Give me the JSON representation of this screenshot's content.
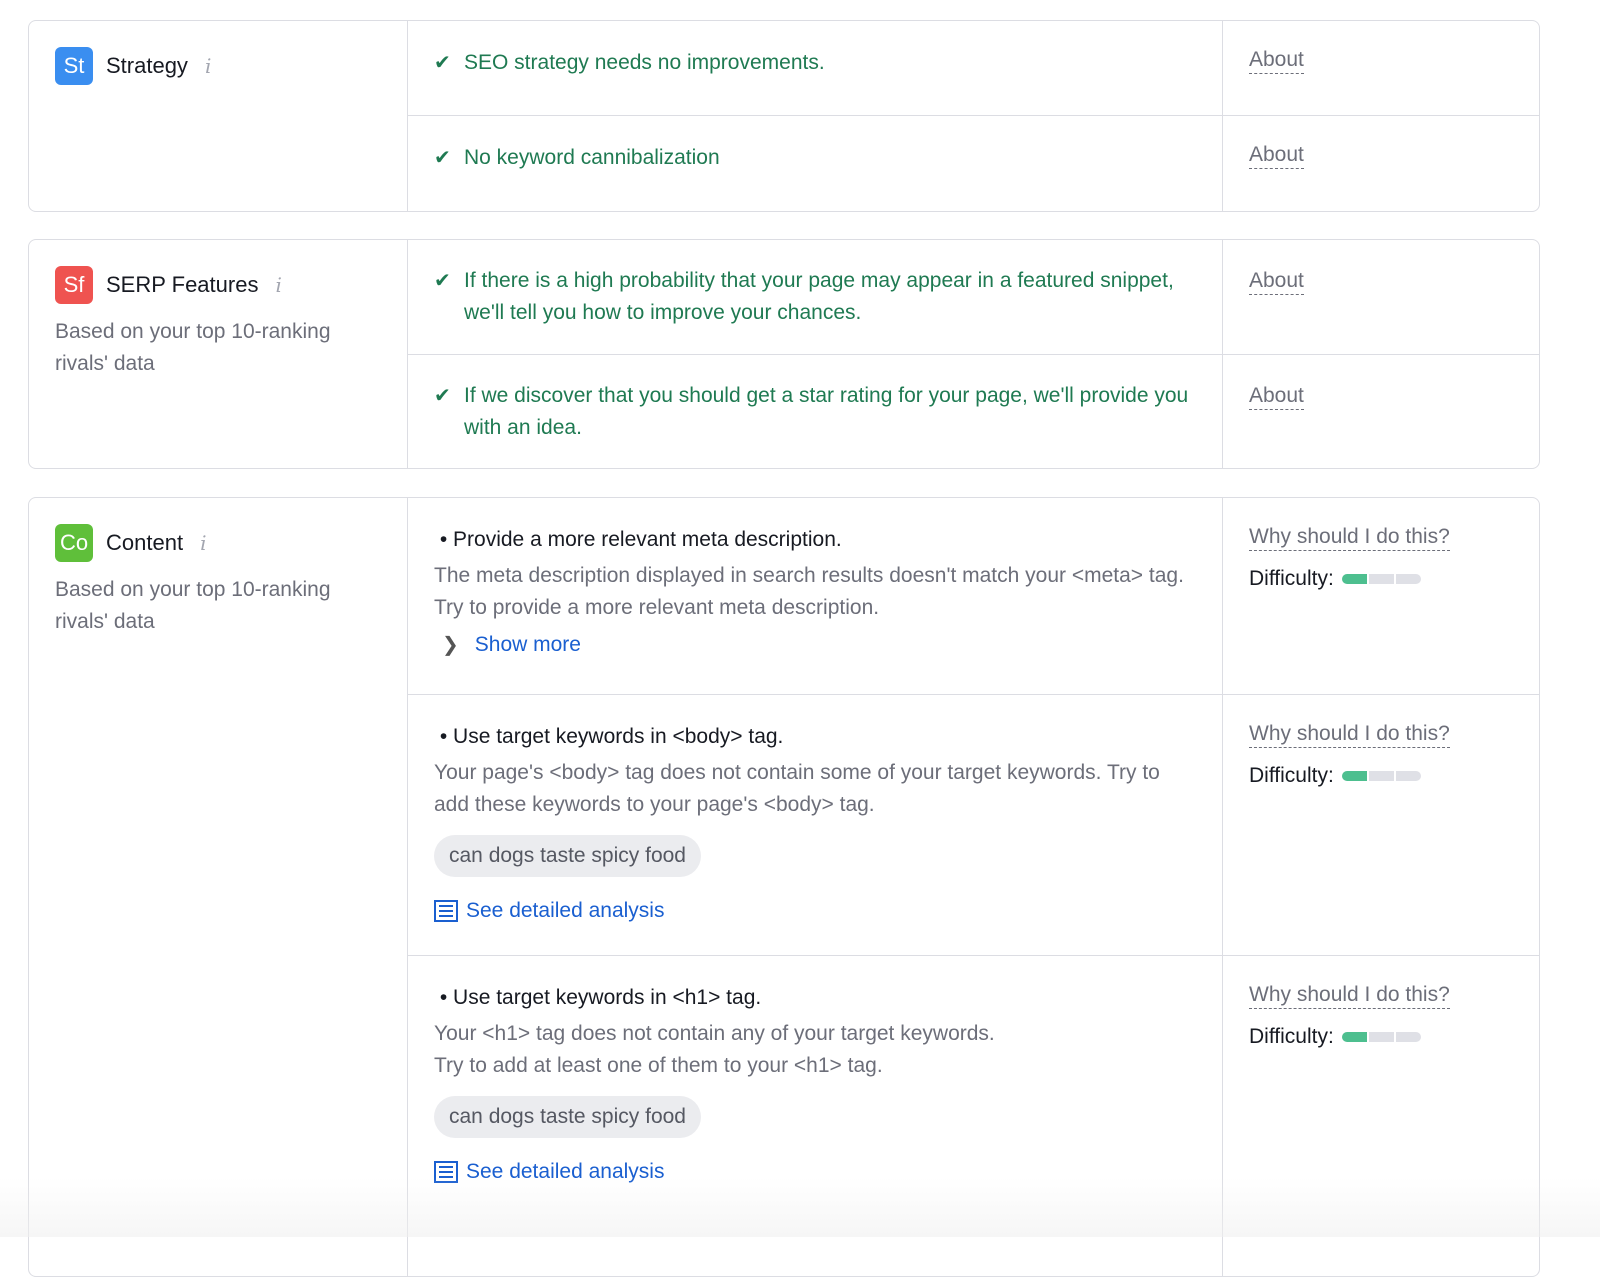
{
  "sections": [
    {
      "badge": "St",
      "badge_color": "#3a8ef0",
      "title": "Strategy",
      "items": [
        {
          "text": "SEO strategy needs no improvements.",
          "link": "About"
        },
        {
          "text": "No keyword cannibalization",
          "link": "About"
        }
      ]
    },
    {
      "badge": "Sf",
      "badge_color": "#ef5350",
      "title": "SERP Features",
      "subtitle": "Based on your top 10-ranking rivals' data",
      "items": [
        {
          "text": "If there is a high probability that your page may appear in a featured snippet, we'll tell you how to improve your chances.",
          "link": "About"
        },
        {
          "text": "If we discover that you should get a star rating for your page, we'll provide you with an idea.",
          "link": "About"
        }
      ]
    },
    {
      "badge": "Co",
      "badge_color": "#5fbf3a",
      "title": "Content",
      "subtitle": "Based on your top 10-ranking rivals' data",
      "items": [
        {
          "title": "Provide a more relevant meta description.",
          "desc": "The meta description displayed in search results doesn't match your <meta> tag. Try to provide a more relevant meta description.",
          "more": "Show more",
          "why": "Why should I do this?",
          "difficulty_label": "Difficulty:",
          "difficulty_level": 1,
          "difficulty_max": 3
        },
        {
          "title": "Use target keywords in <body> tag.",
          "desc": "Your page's <body> tag does not contain some of your target keywords. Try to add these keywords to your page's <body> tag.",
          "keyword": "can dogs taste spicy food",
          "analysis": "See detailed analysis",
          "why": "Why should I do this?",
          "difficulty_label": "Difficulty:",
          "difficulty_level": 1,
          "difficulty_max": 3
        },
        {
          "title": "Use target keywords in <h1> tag.",
          "desc": "Your <h1> tag does not contain any of your target keywords.\nTry to add at least one of them to your <h1> tag.",
          "keyword": "can dogs taste spicy food",
          "analysis": "See detailed analysis",
          "why": "Why should I do this?",
          "difficulty_label": "Difficulty:",
          "difficulty_level": 1,
          "difficulty_max": 3
        }
      ]
    }
  ],
  "icons": {
    "check": "check-icon",
    "info": "info-icon",
    "chevron": "chevron-right-icon",
    "analysis": "document-icon"
  }
}
